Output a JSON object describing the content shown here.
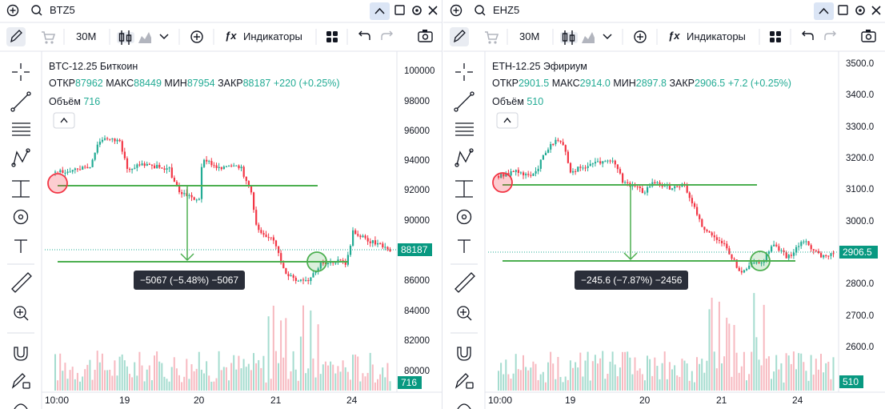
{
  "panes": [
    {
      "id": "btc",
      "symbol_search": "BTZ5",
      "toolbar": {
        "interval": "30M",
        "indicators_label": "Индикаторы"
      },
      "legend": {
        "title": "BTC-12.25 Биткоин",
        "open_label": "ОТКР",
        "open": "87962",
        "high_label": "МАКС",
        "high": "88449",
        "low_label": "МИН",
        "low": "87954",
        "close_label": "ЗАКР",
        "close": "88187",
        "change": "+220 (+0.25%)",
        "volume_label": "Объём",
        "volume": "716"
      },
      "price_axis": [
        "100000",
        "98000",
        "96000",
        "94000",
        "92000",
        "90000",
        "86000",
        "84000",
        "82000",
        "80000"
      ],
      "time_axis": [
        "10:00",
        "19",
        "20",
        "21",
        "24"
      ],
      "last_price": "88187",
      "last_volume": "716",
      "measure_label": "−5067 (−5.48%) −5067"
    },
    {
      "id": "eth",
      "symbol_search": "EHZ5",
      "toolbar": {
        "interval": "30M",
        "indicators_label": "Индикаторы"
      },
      "legend": {
        "title": "ETH-12.25 Эфириум",
        "open_label": "ОТКР",
        "open": "2901.5",
        "high_label": "МАКС",
        "high": "2914.0",
        "low_label": "МИН",
        "low": "2897.8",
        "close_label": "ЗАКР",
        "close": "2906.5",
        "change": "+7.2 (+0.25%)",
        "volume_label": "Объём",
        "volume": "510"
      },
      "price_axis": [
        "3500.0",
        "3400.0",
        "3300.0",
        "3200.0",
        "3100.0",
        "3000.0",
        "2800.0",
        "2700.0",
        "2600.0"
      ],
      "time_axis": [
        "10:00",
        "19",
        "20",
        "21",
        "24"
      ],
      "last_price": "2906.5",
      "last_volume": "510",
      "measure_label": "−245.6 (−7.87%) −2456"
    }
  ],
  "colors": {
    "up": "#22ab94",
    "down": "#f23645",
    "accent": "#2962ff",
    "line": "#4caf50"
  }
}
